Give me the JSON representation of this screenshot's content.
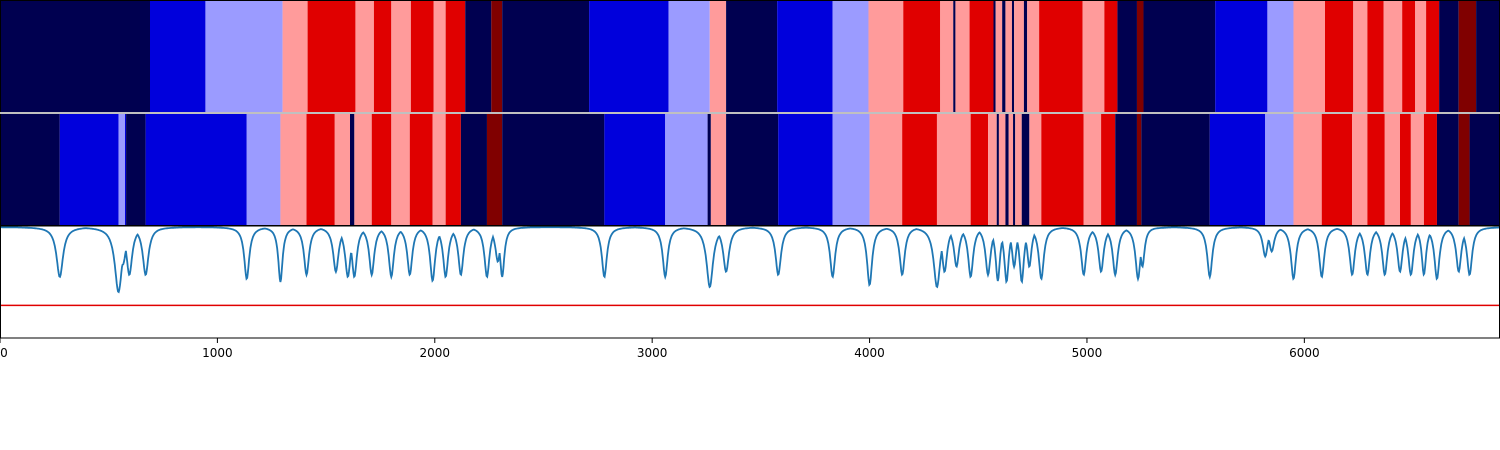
{
  "chart_data": {
    "type": "heatmap",
    "x_ticks": [
      0,
      1000,
      2000,
      3000,
      4000,
      5000,
      6000
    ],
    "xlim": [
      0,
      6900
    ],
    "row_colors": {
      "0": "#000050",
      "1": "#0000dc",
      "2": "#9b9bff",
      "3": "#ff9b9b",
      "4": "#e00000",
      "5": "#800000"
    },
    "rows": [
      {
        "segments": [
          [
            0,
            690,
            0
          ],
          [
            690,
            945,
            1
          ],
          [
            945,
            1300,
            2
          ],
          [
            1300,
            1415,
            3
          ],
          [
            1415,
            1635,
            4
          ],
          [
            1635,
            1720,
            3
          ],
          [
            1720,
            1800,
            4
          ],
          [
            1800,
            1890,
            3
          ],
          [
            1890,
            1995,
            4
          ],
          [
            1995,
            2050,
            3
          ],
          [
            2050,
            2140,
            4
          ],
          [
            2140,
            2260,
            0
          ],
          [
            2260,
            2310,
            5
          ],
          [
            2310,
            2710,
            0
          ],
          [
            2710,
            3075,
            1
          ],
          [
            3075,
            3265,
            2
          ],
          [
            3265,
            3340,
            3
          ],
          [
            3340,
            3575,
            0
          ],
          [
            3575,
            3830,
            1
          ],
          [
            3830,
            3995,
            2
          ],
          [
            3995,
            4155,
            3
          ],
          [
            4155,
            4325,
            4
          ],
          [
            4325,
            4385,
            3
          ],
          [
            4385,
            4395,
            0
          ],
          [
            4395,
            4460,
            3
          ],
          [
            4460,
            4570,
            4
          ],
          [
            4570,
            4580,
            0
          ],
          [
            4580,
            4610,
            3
          ],
          [
            4610,
            4625,
            0
          ],
          [
            4625,
            4655,
            3
          ],
          [
            4655,
            4665,
            0
          ],
          [
            4665,
            4710,
            3
          ],
          [
            4710,
            4725,
            0
          ],
          [
            4725,
            4780,
            3
          ],
          [
            4780,
            4980,
            4
          ],
          [
            4980,
            5080,
            3
          ],
          [
            5080,
            5140,
            4
          ],
          [
            5140,
            5230,
            0
          ],
          [
            5230,
            5260,
            5
          ],
          [
            5260,
            5590,
            0
          ],
          [
            5590,
            5830,
            1
          ],
          [
            5830,
            5950,
            2
          ],
          [
            5950,
            6095,
            3
          ],
          [
            6095,
            6225,
            4
          ],
          [
            6225,
            6290,
            3
          ],
          [
            6290,
            6365,
            4
          ],
          [
            6365,
            6450,
            3
          ],
          [
            6450,
            6510,
            4
          ],
          [
            6510,
            6560,
            3
          ],
          [
            6560,
            6620,
            4
          ],
          [
            6620,
            6710,
            0
          ],
          [
            6710,
            6790,
            5
          ],
          [
            6790,
            6900,
            0
          ]
        ]
      },
      {
        "segments": [
          [
            0,
            275,
            0
          ],
          [
            275,
            545,
            1
          ],
          [
            545,
            575,
            2
          ],
          [
            575,
            580,
            1
          ],
          [
            580,
            670,
            0
          ],
          [
            670,
            1135,
            1
          ],
          [
            1135,
            1290,
            2
          ],
          [
            1290,
            1410,
            3
          ],
          [
            1410,
            1540,
            4
          ],
          [
            1540,
            1610,
            3
          ],
          [
            1610,
            1630,
            0
          ],
          [
            1630,
            1710,
            3
          ],
          [
            1710,
            1800,
            4
          ],
          [
            1800,
            1885,
            3
          ],
          [
            1885,
            1990,
            4
          ],
          [
            1990,
            2050,
            3
          ],
          [
            2050,
            2120,
            4
          ],
          [
            2120,
            2240,
            0
          ],
          [
            2240,
            2310,
            5
          ],
          [
            2310,
            2780,
            0
          ],
          [
            2780,
            3060,
            1
          ],
          [
            3060,
            3255,
            2
          ],
          [
            3255,
            3270,
            0
          ],
          [
            3270,
            3340,
            3
          ],
          [
            3340,
            3580,
            0
          ],
          [
            3580,
            3830,
            1
          ],
          [
            3830,
            4000,
            2
          ],
          [
            4000,
            4150,
            3
          ],
          [
            4150,
            4310,
            4
          ],
          [
            4310,
            4465,
            3
          ],
          [
            4465,
            4545,
            4
          ],
          [
            4545,
            4585,
            3
          ],
          [
            4585,
            4595,
            0
          ],
          [
            4595,
            4625,
            3
          ],
          [
            4625,
            4640,
            0
          ],
          [
            4640,
            4660,
            3
          ],
          [
            4660,
            4670,
            0
          ],
          [
            4670,
            4700,
            3
          ],
          [
            4700,
            4735,
            0
          ],
          [
            4735,
            4790,
            3
          ],
          [
            4790,
            4985,
            4
          ],
          [
            4985,
            5065,
            3
          ],
          [
            5065,
            5130,
            4
          ],
          [
            5130,
            5230,
            0
          ],
          [
            5230,
            5250,
            5
          ],
          [
            5250,
            5565,
            0
          ],
          [
            5565,
            5820,
            1
          ],
          [
            5820,
            5950,
            2
          ],
          [
            5950,
            6080,
            3
          ],
          [
            6080,
            6220,
            4
          ],
          [
            6220,
            6290,
            3
          ],
          [
            6290,
            6370,
            4
          ],
          [
            6370,
            6440,
            3
          ],
          [
            6440,
            6490,
            4
          ],
          [
            6490,
            6550,
            3
          ],
          [
            6550,
            6610,
            4
          ],
          [
            6610,
            6710,
            0
          ],
          [
            6710,
            6760,
            5
          ],
          [
            6760,
            6900,
            0
          ]
        ]
      }
    ],
    "line": {
      "color": "#1f77b4",
      "ylim": [
        -0.1,
        1.0
      ],
      "baseline": 0.99,
      "dips": [
        [
          275,
          0.5,
          18
        ],
        [
          545,
          0.35,
          20
        ],
        [
          565,
          0.62,
          18
        ],
        [
          595,
          0.52,
          16
        ],
        [
          670,
          0.52,
          16
        ],
        [
          1135,
          0.48,
          14
        ],
        [
          1290,
          0.45,
          12
        ],
        [
          1410,
          0.52,
          14
        ],
        [
          1545,
          0.55,
          15
        ],
        [
          1600,
          0.5,
          15
        ],
        [
          1630,
          0.5,
          14
        ],
        [
          1710,
          0.52,
          14
        ],
        [
          1800,
          0.5,
          14
        ],
        [
          1885,
          0.52,
          14
        ],
        [
          1990,
          0.46,
          14
        ],
        [
          2050,
          0.5,
          14
        ],
        [
          2120,
          0.52,
          14
        ],
        [
          2240,
          0.5,
          14
        ],
        [
          2290,
          0.65,
          14
        ],
        [
          2310,
          0.5,
          12
        ],
        [
          2780,
          0.5,
          14
        ],
        [
          3060,
          0.5,
          14
        ],
        [
          3265,
          0.4,
          18
        ],
        [
          3340,
          0.55,
          16
        ],
        [
          3580,
          0.52,
          15
        ],
        [
          3830,
          0.5,
          14
        ],
        [
          4000,
          0.42,
          14
        ],
        [
          4150,
          0.52,
          14
        ],
        [
          4310,
          0.4,
          18
        ],
        [
          4345,
          0.55,
          14
        ],
        [
          4400,
          0.6,
          14
        ],
        [
          4465,
          0.5,
          14
        ],
        [
          4545,
          0.52,
          14
        ],
        [
          4590,
          0.46,
          12
        ],
        [
          4630,
          0.45,
          12
        ],
        [
          4665,
          0.6,
          12
        ],
        [
          4700,
          0.45,
          12
        ],
        [
          4735,
          0.6,
          12
        ],
        [
          4790,
          0.48,
          14
        ],
        [
          4985,
          0.52,
          14
        ],
        [
          5065,
          0.55,
          14
        ],
        [
          5130,
          0.52,
          14
        ],
        [
          5235,
          0.48,
          14
        ],
        [
          5255,
          0.6,
          12
        ],
        [
          5565,
          0.5,
          14
        ],
        [
          5820,
          0.7,
          14
        ],
        [
          5850,
          0.75,
          14
        ],
        [
          5950,
          0.48,
          14
        ],
        [
          6080,
          0.5,
          14
        ],
        [
          6220,
          0.52,
          14
        ],
        [
          6290,
          0.52,
          14
        ],
        [
          6370,
          0.52,
          14
        ],
        [
          6440,
          0.55,
          14
        ],
        [
          6490,
          0.52,
          14
        ],
        [
          6550,
          0.52,
          12
        ],
        [
          6610,
          0.48,
          14
        ],
        [
          6710,
          0.55,
          14
        ],
        [
          6760,
          0.52,
          14
        ]
      ],
      "threshold": {
        "value": 0.22,
        "color": "#e00000"
      }
    }
  }
}
